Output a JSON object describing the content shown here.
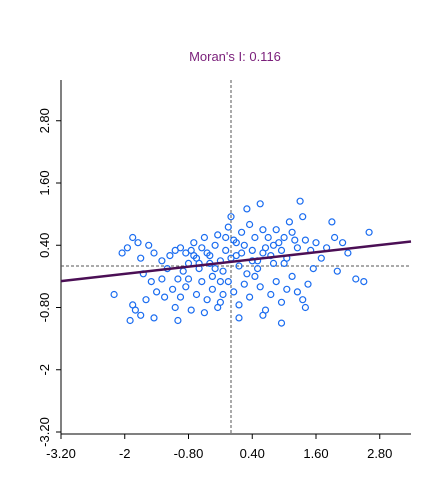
{
  "chart_data": {
    "type": "scatter",
    "title": "Moran's I: 0.116",
    "xlabel": "",
    "ylabel": "",
    "xlim": [
      -3.2,
      3.2
    ],
    "ylim": [
      -3.2,
      3.2
    ],
    "x_ticks": [
      "-3.20",
      "-2",
      "-0.80",
      "0.40",
      "1.60",
      "2.80"
    ],
    "y_ticks": [
      "-3.20",
      "-2",
      "-0.80",
      "0.40",
      "1.60",
      "2.80"
    ],
    "grid": false,
    "reference_lines": {
      "x_mean": 0.0,
      "y_mean": 0.0
    },
    "regression_line": {
      "slope": 0.116,
      "intercept": 0.08
    },
    "colors": {
      "points": "#1a6cf0",
      "regression": "#4b0f55",
      "title": "#7a1f7a",
      "reference": "#555555",
      "axis": "#000000"
    },
    "points": [
      [
        -1.85,
        0.55
      ],
      [
        -1.95,
        0.35
      ],
      [
        -1.75,
        0.45
      ],
      [
        -2.05,
        0.25
      ],
      [
        -1.7,
        0.15
      ],
      [
        -1.55,
        0.4
      ],
      [
        -1.45,
        0.25
      ],
      [
        -1.3,
        0.1
      ],
      [
        -1.15,
        0.2
      ],
      [
        -1.05,
        0.3
      ],
      [
        -0.95,
        0.35
      ],
      [
        -0.85,
        0.25
      ],
      [
        -1.2,
        -0.05
      ],
      [
        -1.65,
        -0.15
      ],
      [
        -1.5,
        -0.3
      ],
      [
        -1.4,
        -0.5
      ],
      [
        -1.25,
        -0.6
      ],
      [
        -1.1,
        -0.45
      ],
      [
        -1.0,
        -0.25
      ],
      [
        -0.9,
        -0.1
      ],
      [
        -0.8,
        0.05
      ],
      [
        -0.75,
        0.3
      ],
      [
        -0.7,
        0.45
      ],
      [
        -0.65,
        0.15
      ],
      [
        -0.6,
        -0.05
      ],
      [
        -0.55,
        0.35
      ],
      [
        -0.5,
        0.55
      ],
      [
        -0.45,
        0.25
      ],
      [
        -0.4,
        0.05
      ],
      [
        -0.35,
        -0.2
      ],
      [
        -0.3,
        0.4
      ],
      [
        -0.25,
        0.6
      ],
      [
        -0.2,
        0.1
      ],
      [
        -0.15,
        -0.1
      ],
      [
        -0.1,
        0.3
      ],
      [
        -0.05,
        0.75
      ],
      [
        0.0,
        0.95
      ],
      [
        0.05,
        0.5
      ],
      [
        0.1,
        0.2
      ],
      [
        0.15,
        0.0
      ],
      [
        0.2,
        0.65
      ],
      [
        0.25,
        0.4
      ],
      [
        0.3,
        1.1
      ],
      [
        0.35,
        0.8
      ],
      [
        0.4,
        0.3
      ],
      [
        0.45,
        0.55
      ],
      [
        0.5,
        0.1
      ],
      [
        0.55,
        1.2
      ],
      [
        0.6,
        0.7
      ],
      [
        0.65,
        0.35
      ],
      [
        0.7,
        0.55
      ],
      [
        0.75,
        0.2
      ],
      [
        0.8,
        0.05
      ],
      [
        0.85,
        0.7
      ],
      [
        0.9,
        0.45
      ],
      [
        0.95,
        0.3
      ],
      [
        1.0,
        0.55
      ],
      [
        1.05,
        0.15
      ],
      [
        1.1,
        0.85
      ],
      [
        1.15,
        0.65
      ],
      [
        1.2,
        0.5
      ],
      [
        1.25,
        0.35
      ],
      [
        1.3,
        1.25
      ],
      [
        1.35,
        0.95
      ],
      [
        1.4,
        0.5
      ],
      [
        1.5,
        0.3
      ],
      [
        1.6,
        0.45
      ],
      [
        1.7,
        0.15
      ],
      [
        1.8,
        0.35
      ],
      [
        1.9,
        0.85
      ],
      [
        1.95,
        0.55
      ],
      [
        2.1,
        0.45
      ],
      [
        2.2,
        0.25
      ],
      [
        2.35,
        -0.25
      ],
      [
        2.5,
        -0.3
      ],
      [
        2.6,
        0.65
      ],
      [
        2.0,
        -0.1
      ],
      [
        1.55,
        -0.05
      ],
      [
        1.45,
        -0.35
      ],
      [
        1.35,
        -0.65
      ],
      [
        1.25,
        -0.5
      ],
      [
        1.15,
        -0.2
      ],
      [
        1.05,
        -0.45
      ],
      [
        0.95,
        -0.7
      ],
      [
        0.85,
        -0.3
      ],
      [
        0.75,
        -0.55
      ],
      [
        0.65,
        -0.85
      ],
      [
        0.55,
        -0.4
      ],
      [
        0.45,
        -0.2
      ],
      [
        0.35,
        -0.6
      ],
      [
        0.25,
        -0.35
      ],
      [
        0.15,
        -0.75
      ],
      [
        0.05,
        -0.5
      ],
      [
        -0.05,
        -0.3
      ],
      [
        -0.15,
        -0.55
      ],
      [
        -0.25,
        -0.8
      ],
      [
        -0.35,
        -0.45
      ],
      [
        -0.45,
        -0.65
      ],
      [
        -0.55,
        -0.3
      ],
      [
        -0.65,
        -0.55
      ],
      [
        -0.75,
        -0.85
      ],
      [
        -0.85,
        -0.4
      ],
      [
        -0.95,
        -0.6
      ],
      [
        -1.05,
        -0.8
      ],
      [
        -1.3,
        -0.25
      ],
      [
        -1.6,
        -0.65
      ],
      [
        -1.8,
        -0.85
      ],
      [
        -1.9,
        -1.05
      ],
      [
        -1.85,
        -0.75
      ],
      [
        -1.7,
        -0.95
      ],
      [
        -2.2,
        -0.55
      ],
      [
        -1.45,
        -1.0
      ],
      [
        -1.0,
        -1.05
      ],
      [
        -0.5,
        -0.9
      ],
      [
        -0.2,
        -0.7
      ],
      [
        0.15,
        -1.0
      ],
      [
        0.6,
        -0.95
      ],
      [
        0.95,
        -1.1
      ],
      [
        1.4,
        -0.8
      ],
      [
        -0.6,
        0.05
      ],
      [
        -0.3,
        -0.05
      ],
      [
        0.0,
        0.15
      ],
      [
        0.2,
        0.25
      ],
      [
        0.4,
        0.1
      ],
      [
        0.1,
        0.45
      ],
      [
        -0.1,
        0.55
      ],
      [
        0.6,
        0.25
      ],
      [
        0.8,
        0.4
      ],
      [
        -0.4,
        0.2
      ],
      [
        -0.7,
        0.2
      ],
      [
        0.3,
        -0.15
      ],
      [
        -0.2,
        -0.3
      ],
      [
        0.5,
        -0.05
      ],
      [
        -0.8,
        -0.25
      ],
      [
        1.0,
        0.05
      ]
    ]
  }
}
